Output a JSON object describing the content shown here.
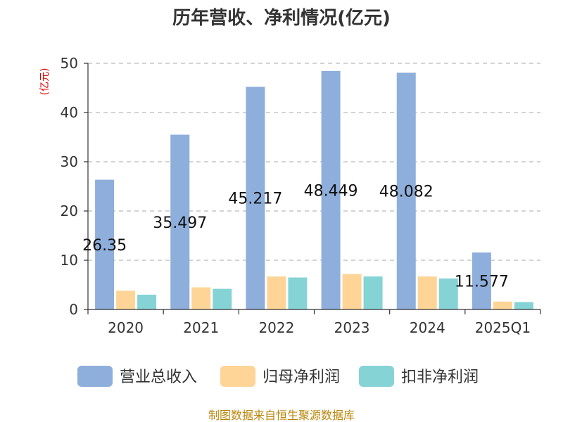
{
  "chart_data": {
    "type": "bar",
    "title": "历年营收、净利情况(亿元)",
    "ylabel": "(亿元)",
    "xlabel": "",
    "categories": [
      "2020",
      "2021",
      "2022",
      "2023",
      "2024",
      "2025Q1"
    ],
    "ylim": [
      0,
      50
    ],
    "yticks": [
      0,
      10,
      20,
      30,
      40,
      50
    ],
    "grid": true,
    "legend_position": "bottom",
    "series": [
      {
        "name": "营业总收入",
        "color": "#8eaedb",
        "values": [
          26.35,
          35.497,
          45.217,
          48.449,
          48.082,
          11.577
        ],
        "labels": [
          "26.35",
          "35.497",
          "45.217",
          "48.449",
          "48.082",
          "11.577"
        ]
      },
      {
        "name": "归母净利润",
        "color": "#fed596",
        "values": [
          3.8,
          4.5,
          6.7,
          7.2,
          6.7,
          1.6
        ]
      },
      {
        "name": "扣非净利润",
        "color": "#86d3d6",
        "values": [
          3.0,
          4.2,
          6.5,
          6.7,
          6.3,
          1.5
        ]
      }
    ]
  },
  "footer": "制图数据来自恒生聚源数据库"
}
